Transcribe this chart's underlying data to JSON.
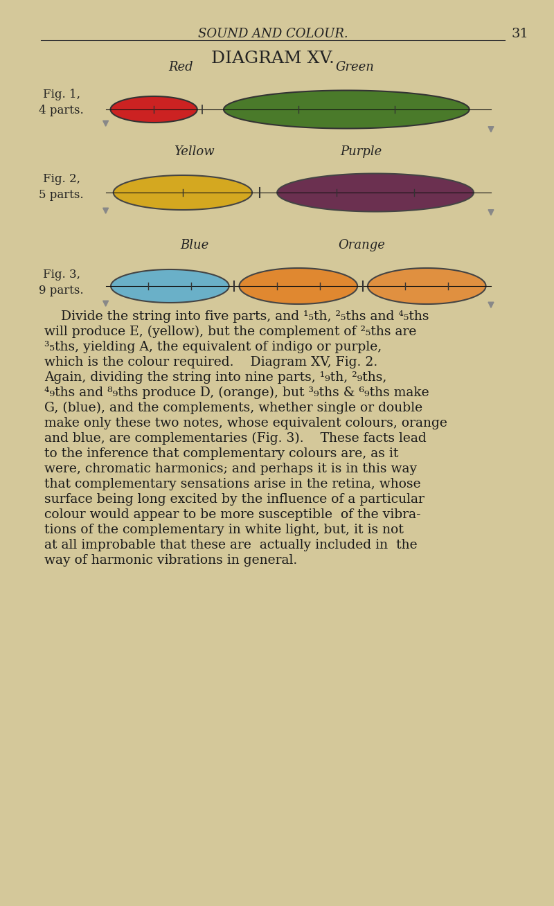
{
  "background_color": "#d4c89a",
  "page_bg": "#cfc08a",
  "title_header": "SOUND AND COLOUR.",
  "page_number": "31",
  "diagram_title": "DIAGRAM XV.",
  "header_fontsize": 13,
  "title_fontsize": 17,
  "fig1_label": "Fig. 1,\n4 parts.",
  "fig2_label": "Fig. 2,\n5 parts.",
  "fig3_label": "Fig. 3,\n9 parts.",
  "fig1_colors": [
    "#cc2222",
    "#4a7a2a"
  ],
  "fig2_colors": [
    "#d4a820",
    "#6b3050"
  ],
  "fig3_colors": [
    "#6ab0c8",
    "#e08830",
    "#e09040"
  ],
  "fig1_color_labels": [
    "Red",
    "Green"
  ],
  "fig2_color_labels": [
    "Yellow",
    "Purple"
  ],
  "fig3_color_labels": [
    "Blue",
    "Orange"
  ],
  "body_text_lines": [
    "    Divide the string into five parts, and ¹₅th, ²₅ths and ⁴₅ths",
    "will produce E, (yellow), but the complement of ²₅ths are",
    "³₅ths, yielding A, the equivalent of indigo or purple,",
    "which is the colour required.    Diagram XV, Fig. 2.",
    "Again, dividing the string into nine parts, ¹₉th, ²₉ths,",
    "⁴₉ths and ⁸₉ths produce D, (orange), but ³₉ths & ⁶₉ths make",
    "G, (blue), and the complements, whether single or double",
    "make only these two notes, whose equivalent colours, orange",
    "and blue, are complementaries (Fig. 3).    These facts lead",
    "to the inference that complementary colours are, as it",
    "were, chromatic harmonics; and perhaps it is in this way",
    "that complementary sensations arise in the retina, whose",
    "surface being long excited by the influence of a particular",
    "colour would appear to be more susceptible  of the vibra-",
    "tions of the complementary in white light, but, it is not",
    "at all improbable that these are  actually included in  the",
    "way of harmonic vibrations in general."
  ],
  "body_fontsize": 13.5
}
